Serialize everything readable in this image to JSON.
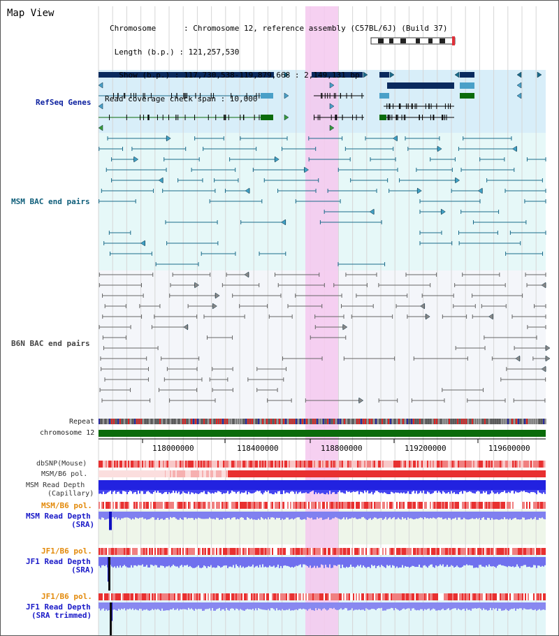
{
  "app": {
    "title": "Map View"
  },
  "header": {
    "chromosome_line": "Chromosome      : Chromosome 12, reference assembly (C57BL/6J) (Build 37)",
    "length_line": " Length (b.p.) : 121,257,530",
    "show_line": "  Show (b.p.) : 117,730,538-119,879,668 : 2,149,131 bp",
    "coverage_line": "Read coverage check span : 10,000"
  },
  "tracks": {
    "refseq": "RefSeq Genes",
    "msm_bac": "MSM BAC end pairs",
    "b6n_bac": "B6N BAC end pairs",
    "repeat": "Repeat",
    "chromosome": "chromosome 12",
    "dbsnp": "dbSNP(Mouse)",
    "msm_b6_pol_1": "MSM/B6 pol.",
    "msm_read_depth_cap_1": "MSM Read Depth",
    "msm_read_depth_cap_2": "(Capillary)",
    "msm_b6_pol_2": "MSM/B6 pol.",
    "msm_read_depth_sra_1": "MSM Read Depth",
    "msm_read_depth_sra_2": "(SRA)",
    "jf1_b6_pol_1": "JF1/B6 pol.",
    "jf1_read_depth_sra_1": "JF1 Read Depth",
    "jf1_read_depth_sra_2": "(SRA)",
    "jf1_b6_pol_2": "JF1/B6 pol.",
    "jf1_read_depth_trim_1": "JF1 Read Depth",
    "jf1_read_depth_trim_2": "(SRA trimmed)"
  },
  "axis": {
    "ticks": [
      "118000000",
      "118400000",
      "118800000",
      "119200000",
      "119600000"
    ]
  },
  "colors": {
    "refseq_bg": "#d8eef9",
    "msm_bac_bg": "#e6f8f8",
    "b6n_bac_bg": "#f4f6fa",
    "highlight": "#f4c8ee",
    "navy": "#0a2a5e",
    "teal": "#1b6b8a",
    "chrom_green": "#0b6b0b"
  }
}
